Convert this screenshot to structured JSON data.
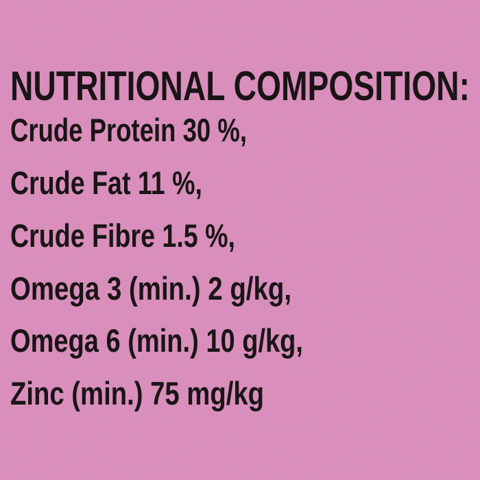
{
  "title": "NUTRITIONAL COMPOSITION:",
  "items": [
    "Crude Protein 30 %,",
    "Crude Fat 11 %,",
    "Crude Fibre 1.5 %,",
    "Omega 3 (min.) 2 g/kg,",
    "Omega 6 (min.) 10 g/kg,",
    "Zinc (min.) 75 mg/kg"
  ]
}
